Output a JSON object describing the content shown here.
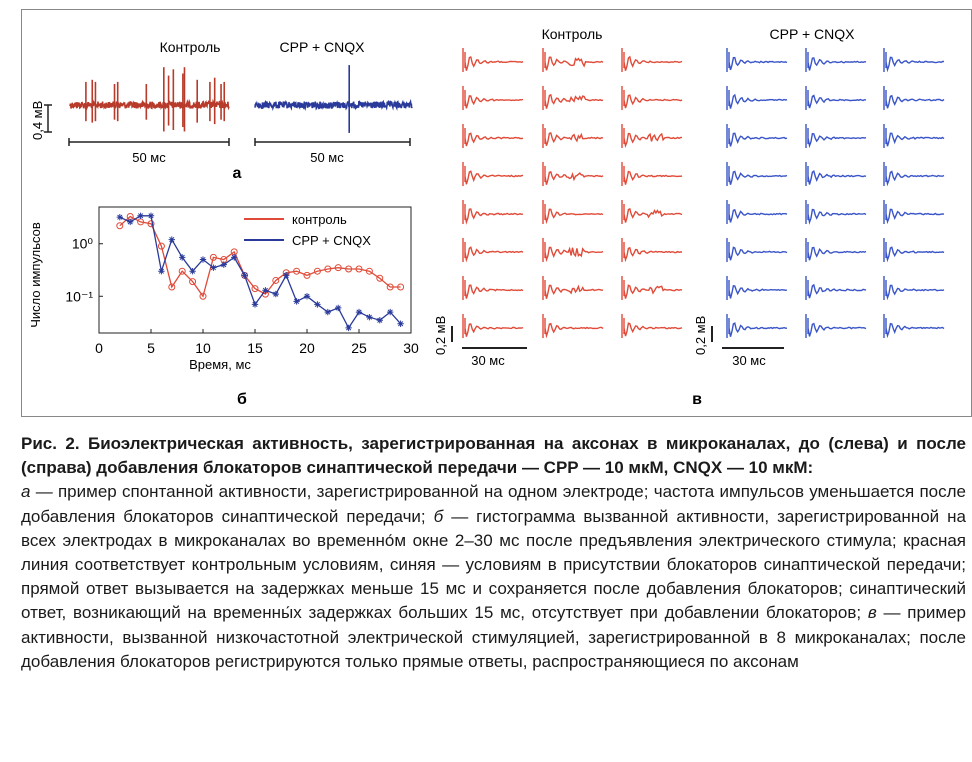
{
  "figure": {
    "colors": {
      "control": "#b83a2a",
      "control_light": "#e04a38",
      "blocked": "#2a3a9a",
      "blocked_light": "#3a55c8"
    },
    "panel_a": {
      "label": "а",
      "control_title": "Контроль",
      "blocked_title": "CPP + CNQX",
      "scale_v": "0,4 мВ",
      "scale_t1": "50 мс",
      "scale_t2": "50 мс",
      "control_spikes": [
        0.1,
        0.14,
        0.16,
        0.28,
        0.3,
        0.48,
        0.59,
        0.62,
        0.65,
        0.71,
        0.72,
        0.8,
        0.88,
        0.91,
        0.95,
        0.97
      ],
      "control_spike_heights": [
        0.55,
        0.6,
        0.55,
        0.5,
        0.55,
        0.5,
        0.9,
        0.7,
        0.85,
        0.75,
        0.9,
        0.6,
        0.55,
        0.65,
        0.5,
        0.55
      ],
      "blocked_spikes": [
        0.6
      ],
      "blocked_spike_heights": [
        0.95
      ]
    },
    "panel_b": {
      "label": "б",
      "ylabel": "Число импульсов",
      "xlabel": "Время, мс",
      "x_ticks": [
        "0",
        "5",
        "10",
        "15",
        "20",
        "25",
        "30"
      ],
      "y_ticks": [
        "10⁰",
        "10⁻¹"
      ],
      "legend_control": "контроль",
      "legend_blocked": "CPP + CNQX"
    },
    "panel_c": {
      "label": "в",
      "control_title": "Контроль",
      "blocked_title": "CPP + CNQX",
      "scale_v1": "0,2 мВ",
      "scale_t1": "30 мс",
      "scale_v2": "0,2 мВ",
      "scale_t2": "30 мс",
      "rows": 8,
      "cols": 3
    }
  },
  "chart_data": {
    "type": "line",
    "xlabel": "Время, мс",
    "ylabel": "Число импульсов",
    "x_scale": "linear",
    "y_scale": "log",
    "xlim": [
      0,
      30
    ],
    "ylim": [
      0.02,
      5
    ],
    "grid": false,
    "legend_position": "top-right",
    "series": [
      {
        "name": "контроль",
        "color": "#e04a38",
        "marker": "circle",
        "x": [
          2,
          3,
          4,
          5,
          6,
          7,
          8,
          9,
          10,
          11,
          12,
          13,
          14,
          15,
          16,
          17,
          18,
          19,
          20,
          21,
          22,
          23,
          24,
          25,
          26,
          27,
          28,
          29
        ],
        "y": [
          2.2,
          3.3,
          2.6,
          2.4,
          0.9,
          0.15,
          0.3,
          0.19,
          0.1,
          0.55,
          0.5,
          0.7,
          0.25,
          0.14,
          0.11,
          0.2,
          0.28,
          0.3,
          0.25,
          0.3,
          0.33,
          0.35,
          0.33,
          0.33,
          0.3,
          0.22,
          0.15,
          0.15
        ]
      },
      {
        "name": "CPP + CNQX",
        "color": "#2a3a9a",
        "marker": "star",
        "x": [
          2,
          3,
          4,
          5,
          6,
          7,
          8,
          9,
          10,
          11,
          12,
          13,
          14,
          15,
          16,
          17,
          18,
          19,
          20,
          21,
          22,
          23,
          24,
          25,
          26,
          27,
          28,
          29
        ],
        "y": [
          3.2,
          2.6,
          3.4,
          3.4,
          0.3,
          1.2,
          0.55,
          0.3,
          0.5,
          0.35,
          0.4,
          0.55,
          0.25,
          0.07,
          0.13,
          0.11,
          0.25,
          0.08,
          0.1,
          0.07,
          0.05,
          0.06,
          0.025,
          0.05,
          0.04,
          0.035,
          0.05,
          0.03
        ]
      }
    ]
  },
  "caption": {
    "title": "Рис. 2. Биоэлектрическая активность, зарегистрированная на аксонах в микроканалах, до (слева) и после (справа) добавления блокаторов синаптической передачи — CPP — 10 мкМ, CNQX — 10 мкМ:",
    "body_a_letter": "а",
    "body_a": " — пример спонтанной активности, зарегистрированной на одном электроде; частота импульсов уменьшается после добавления блокаторов синаптической передачи; ",
    "body_b_letter": "б",
    "body_b": " — гистограмма вызванной активности, зарегистрированной на всех электродах в микроканалах во временно́м окне 2–30 мс после предъявления электрического стимула; красная линия соответствует контрольным условиям, синяя — условиям в присутствии блокаторов синаптической передачи; прямой ответ вызывается на задержках меньше 15 мс и сохраняется после добавления блокаторов; синаптический ответ, возникающий на временны́х задержках больших 15 мс, отсутствует при добавлении блокаторов; ",
    "body_c_letter": "в",
    "body_c": " — пример активности, вызванной низкочастотной электрической стимуляцией, зарегистрированной в 8 микроканалах; после добавления блокаторов регистрируются только прямые ответы, распространяющиеся по аксонам"
  }
}
